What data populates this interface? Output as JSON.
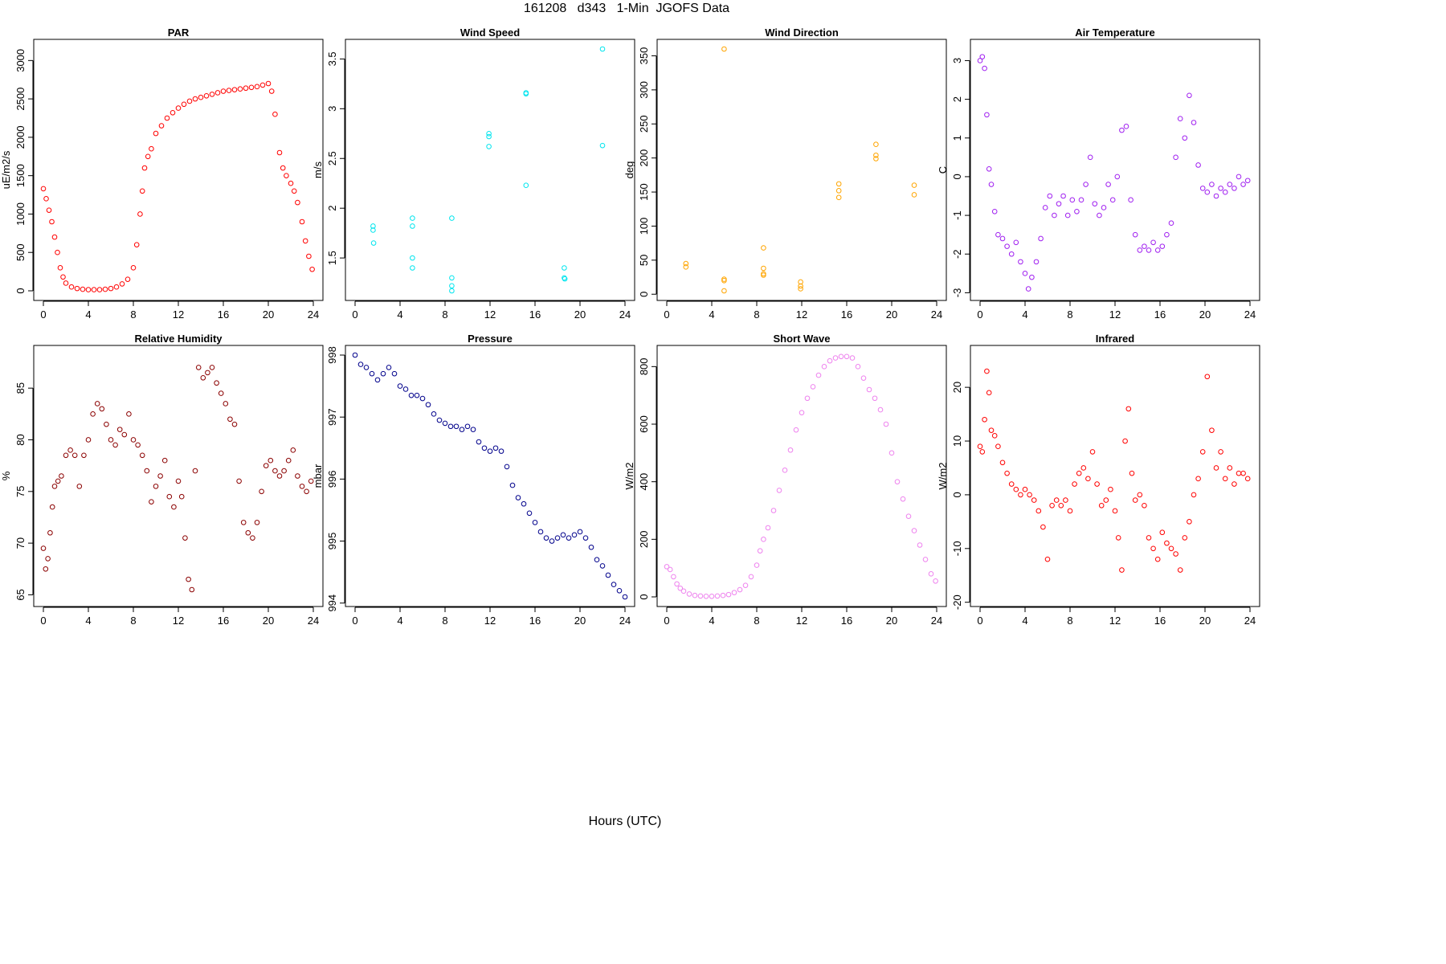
{
  "figure": {
    "title": "161208   d343   1-Min  JGOFS Data",
    "xlabel": "Hours (UTC)"
  },
  "chart_data": [
    {
      "type": "scatter",
      "title": "PAR",
      "ylabel": "uE/m2/s",
      "color": "#ff0000",
      "xlim": [
        0,
        24
      ],
      "ylim": [
        0,
        3150
      ],
      "xticks": [
        0,
        4,
        8,
        12,
        16,
        20,
        24
      ],
      "yticks": [
        0,
        500,
        1000,
        1500,
        2000,
        2500,
        3000
      ],
      "series": [
        {
          "x": [
            0,
            0.25,
            0.5,
            0.75,
            1,
            1.25,
            1.5,
            1.75,
            2,
            2.5,
            3,
            3.5,
            4,
            4.5,
            5,
            5.5,
            6,
            6.5,
            7,
            7.5,
            8,
            8.3,
            8.6,
            8.8,
            9,
            9.3,
            9.6,
            10,
            10.5,
            11,
            11.5,
            12,
            12.5,
            13,
            13.5,
            14,
            14.5,
            15,
            15.5,
            16,
            16.5,
            17,
            17.5,
            18,
            18.5,
            19,
            19.5,
            20,
            20.3,
            20.6,
            21,
            21.3,
            21.6,
            22,
            22.3,
            22.6,
            23,
            23.3,
            23.6,
            23.9
          ],
          "y": [
            1330,
            1200,
            1050,
            900,
            700,
            500,
            300,
            180,
            100,
            50,
            30,
            20,
            15,
            15,
            15,
            20,
            30,
            50,
            90,
            150,
            300,
            600,
            1000,
            1300,
            1600,
            1750,
            1850,
            2050,
            2150,
            2250,
            2320,
            2380,
            2430,
            2470,
            2500,
            2520,
            2540,
            2560,
            2580,
            2600,
            2610,
            2620,
            2630,
            2640,
            2650,
            2660,
            2680,
            2700,
            2600,
            2300,
            1800,
            1600,
            1500,
            1400,
            1300,
            1150,
            900,
            650,
            450,
            280
          ]
        }
      ]
    },
    {
      "type": "scatter",
      "title": "Wind Speed",
      "ylabel": "m/s",
      "color": "#00e5ee",
      "xlim": [
        0,
        24
      ],
      "ylim": [
        1.17,
        3.6
      ],
      "xticks": [
        0,
        4,
        8,
        12,
        16,
        20,
        24
      ],
      "yticks": [
        1.5,
        2.0,
        2.5,
        3.0,
        3.5
      ],
      "series": [
        {
          "x": [
            1.6,
            1.6,
            1.65,
            5.1,
            5.1,
            5.1,
            5.1,
            8.6,
            8.6,
            8.6,
            8.6,
            11.9,
            11.9,
            11.9,
            15.2,
            15.2,
            15.2,
            18.6,
            18.6,
            18.65,
            22,
            22
          ],
          "y": [
            1.82,
            1.78,
            1.65,
            1.9,
            1.82,
            1.5,
            1.4,
            1.9,
            1.3,
            1.22,
            1.17,
            2.75,
            2.72,
            2.62,
            3.16,
            3.15,
            2.23,
            1.4,
            1.3,
            1.29,
            3.6,
            2.63
          ]
        }
      ]
    },
    {
      "type": "scatter",
      "title": "Wind Direction",
      "ylabel": "deg",
      "color": "#ffa500",
      "xlim": [
        0,
        24
      ],
      "ylim": [
        5,
        360
      ],
      "xticks": [
        0,
        4,
        8,
        12,
        16,
        20,
        24
      ],
      "yticks": [
        0,
        50,
        100,
        150,
        200,
        250,
        300,
        350
      ],
      "series": [
        {
          "x": [
            1.7,
            1.7,
            5.1,
            5.1,
            5.1,
            5.1,
            8.6,
            8.6,
            8.6,
            8.6,
            11.9,
            11.9,
            11.9,
            15.3,
            15.3,
            15.3,
            18.6,
            18.6,
            18.6,
            22,
            22
          ],
          "y": [
            45,
            40,
            360,
            22,
            20,
            5,
            68,
            38,
            30,
            28,
            18,
            12,
            8,
            162,
            152,
            142,
            220,
            204,
            199,
            160,
            146
          ]
        }
      ]
    },
    {
      "type": "scatter",
      "title": "Air Temperature",
      "ylabel": "C",
      "color": "#a020f0",
      "xlim": [
        0,
        24
      ],
      "ylim": [
        -2.95,
        3.3
      ],
      "xticks": [
        0,
        4,
        8,
        12,
        16,
        20,
        24
      ],
      "yticks": [
        -3,
        -2,
        -1,
        0,
        1,
        2,
        3
      ],
      "series": [
        {
          "x": [
            0,
            0.2,
            0.4,
            0.6,
            0.8,
            1,
            1.3,
            1.6,
            2,
            2.4,
            2.8,
            3.2,
            3.6,
            4,
            4.3,
            4.6,
            5,
            5.4,
            5.8,
            6.2,
            6.6,
            7,
            7.4,
            7.8,
            8.2,
            8.6,
            9,
            9.4,
            9.8,
            10.2,
            10.6,
            11,
            11.4,
            11.8,
            12.2,
            12.6,
            13,
            13.4,
            13.8,
            14.2,
            14.6,
            15,
            15.4,
            15.8,
            16.2,
            16.6,
            17,
            17.4,
            17.8,
            18.2,
            18.6,
            19,
            19.4,
            19.8,
            20.2,
            20.6,
            21,
            21.4,
            21.8,
            22.2,
            22.6,
            23,
            23.4,
            23.8
          ],
          "y": [
            3.0,
            3.1,
            2.8,
            1.6,
            0.2,
            -0.2,
            -0.9,
            -1.5,
            -1.6,
            -1.8,
            -2.0,
            -1.7,
            -2.2,
            -2.5,
            -2.9,
            -2.6,
            -2.2,
            -1.6,
            -0.8,
            -0.5,
            -1.0,
            -0.7,
            -0.5,
            -1.0,
            -0.6,
            -0.9,
            -0.6,
            -0.2,
            0.5,
            -0.7,
            -1.0,
            -0.8,
            -0.2,
            -0.6,
            0.0,
            1.2,
            1.3,
            -0.6,
            -1.5,
            -1.9,
            -1.8,
            -1.9,
            -1.7,
            -1.9,
            -1.8,
            -1.5,
            -1.2,
            0.5,
            1.5,
            1.0,
            2.1,
            1.4,
            0.3,
            -0.3,
            -0.4,
            -0.2,
            -0.5,
            -0.3,
            -0.4,
            -0.2,
            -0.3,
            0.0,
            -0.2,
            -0.1
          ]
        }
      ]
    },
    {
      "type": "scatter",
      "title": "Relative Humidity",
      "ylabel": "%",
      "color": "#8b0000",
      "xlim": [
        0,
        24
      ],
      "ylim": [
        64.8,
        88.2
      ],
      "xticks": [
        0,
        4,
        8,
        12,
        16,
        20,
        24
      ],
      "yticks": [
        65,
        70,
        75,
        80,
        85
      ],
      "series": [
        {
          "x": [
            0,
            0.2,
            0.4,
            0.6,
            0.8,
            1,
            1.3,
            1.6,
            2,
            2.4,
            2.8,
            3.2,
            3.6,
            4,
            4.4,
            4.8,
            5.2,
            5.6,
            6,
            6.4,
            6.8,
            7.2,
            7.6,
            8,
            8.4,
            8.8,
            9.2,
            9.6,
            10,
            10.4,
            10.8,
            11.2,
            11.6,
            12,
            12.3,
            12.6,
            12.9,
            13.2,
            13.5,
            13.8,
            14.2,
            14.6,
            15,
            15.4,
            15.8,
            16.2,
            16.6,
            17,
            17.4,
            17.8,
            18.2,
            18.6,
            19,
            19.4,
            19.8,
            20.2,
            20.6,
            21,
            21.4,
            21.8,
            22.2,
            22.6,
            23,
            23.4,
            23.8
          ],
          "y": [
            69.5,
            67.5,
            68.5,
            71,
            73.5,
            75.5,
            76,
            76.5,
            78.5,
            79,
            78.5,
            75.5,
            78.5,
            80,
            82.5,
            83.5,
            83,
            81.5,
            80,
            79.5,
            81,
            80.5,
            82.5,
            80,
            79.5,
            78.5,
            77,
            74,
            75.5,
            76.5,
            78,
            74.5,
            73.5,
            76,
            74.5,
            70.5,
            66.5,
            65.5,
            77,
            87,
            86,
            86.5,
            87,
            85.5,
            84.5,
            83.5,
            82,
            81.5,
            76,
            72,
            71,
            70.5,
            72,
            75,
            77.5,
            78,
            77,
            76.5,
            77,
            78,
            79,
            76.5,
            75.5,
            75,
            76
          ]
        }
      ]
    },
    {
      "type": "scatter",
      "title": "Pressure",
      "ylabel": "mbar",
      "color": "#00008b",
      "xlim": [
        0,
        24
      ],
      "ylim": [
        994.1,
        998
      ],
      "xticks": [
        0,
        4,
        8,
        12,
        16,
        20,
        24
      ],
      "yticks": [
        994,
        995,
        996,
        997,
        998
      ],
      "series": [
        {
          "x": [
            0,
            0.5,
            1,
            1.5,
            2,
            2.5,
            3,
            3.5,
            4,
            4.5,
            5,
            5.5,
            6,
            6.5,
            7,
            7.5,
            8,
            8.5,
            9,
            9.5,
            10,
            10.5,
            11,
            11.5,
            12,
            12.5,
            13,
            13.5,
            14,
            14.5,
            15,
            15.5,
            16,
            16.5,
            17,
            17.5,
            18,
            18.5,
            19,
            19.5,
            20,
            20.5,
            21,
            21.5,
            22,
            22.5,
            23,
            23.5,
            24
          ],
          "y": [
            998.0,
            997.85,
            997.8,
            997.7,
            997.6,
            997.7,
            997.8,
            997.7,
            997.5,
            997.45,
            997.35,
            997.35,
            997.3,
            997.2,
            997.05,
            996.95,
            996.9,
            996.85,
            996.85,
            996.8,
            996.85,
            996.8,
            996.6,
            996.5,
            996.45,
            996.5,
            996.45,
            996.2,
            995.9,
            995.7,
            995.6,
            995.45,
            995.3,
            995.15,
            995.05,
            995.0,
            995.05,
            995.1,
            995.05,
            995.1,
            995.15,
            995.05,
            994.9,
            994.7,
            994.6,
            994.45,
            994.3,
            994.2,
            994.1
          ]
        }
      ]
    },
    {
      "type": "scatter",
      "title": "Short Wave",
      "ylabel": "W/m2",
      "color": "#ee82ee",
      "xlim": [
        0,
        24
      ],
      "ylim": [
        0,
        840
      ],
      "xticks": [
        0,
        4,
        8,
        12,
        16,
        20,
        24
      ],
      "yticks": [
        0,
        200,
        400,
        600,
        800
      ],
      "series": [
        {
          "x": [
            0,
            0.3,
            0.6,
            0.9,
            1.2,
            1.5,
            2,
            2.5,
            3,
            3.5,
            4,
            4.5,
            5,
            5.5,
            6,
            6.5,
            7,
            7.5,
            8,
            8.3,
            8.6,
            9,
            9.5,
            10,
            10.5,
            11,
            11.5,
            12,
            12.5,
            13,
            13.5,
            14,
            14.5,
            15,
            15.5,
            16,
            16.5,
            17,
            17.5,
            18,
            18.5,
            19,
            19.5,
            20,
            20.5,
            21,
            21.5,
            22,
            22.5,
            23,
            23.5,
            23.9
          ],
          "y": [
            105,
            95,
            70,
            45,
            30,
            20,
            10,
            5,
            3,
            2,
            2,
            3,
            5,
            8,
            15,
            25,
            40,
            70,
            110,
            160,
            200,
            240,
            300,
            370,
            440,
            510,
            580,
            640,
            690,
            730,
            770,
            800,
            820,
            830,
            835,
            835,
            830,
            800,
            760,
            720,
            690,
            650,
            600,
            500,
            400,
            340,
            280,
            230,
            180,
            130,
            80,
            55
          ]
        }
      ]
    },
    {
      "type": "scatter",
      "title": "Infrared",
      "ylabel": "W/m2",
      "color": "#ff0000",
      "xlim": [
        0,
        24
      ],
      "ylim": [
        -19,
        26
      ],
      "xticks": [
        0,
        4,
        8,
        12,
        16,
        20,
        24
      ],
      "yticks": [
        -20,
        -10,
        0,
        10,
        20
      ],
      "series": [
        {
          "x": [
            0,
            0.2,
            0.4,
            0.6,
            0.8,
            1,
            1.3,
            1.6,
            2,
            2.4,
            2.8,
            3.2,
            3.6,
            4,
            4.4,
            4.8,
            5.2,
            5.6,
            6,
            6.4,
            6.8,
            7.2,
            7.6,
            8,
            8.4,
            8.8,
            9.2,
            9.6,
            10,
            10.4,
            10.8,
            11.2,
            11.6,
            12,
            12.3,
            12.6,
            12.9,
            13.2,
            13.5,
            13.8,
            14.2,
            14.6,
            15,
            15.4,
            15.8,
            16.2,
            16.6,
            17,
            17.4,
            17.8,
            18.2,
            18.6,
            19,
            19.4,
            19.8,
            20.2,
            20.6,
            21,
            21.4,
            21.8,
            22.2,
            22.6,
            23,
            23.4,
            23.8
          ],
          "y": [
            9,
            8,
            14,
            23,
            19,
            12,
            11,
            9,
            6,
            4,
            2,
            1,
            0,
            1,
            0,
            -1,
            -3,
            -6,
            -12,
            -2,
            -1,
            -2,
            -1,
            -3,
            2,
            4,
            5,
            3,
            8,
            2,
            -2,
            -1,
            1,
            -3,
            -8,
            -14,
            10,
            16,
            4,
            -1,
            0,
            -2,
            -8,
            -10,
            -12,
            -7,
            -9,
            -10,
            -11,
            -14,
            -8,
            -5,
            0,
            3,
            8,
            22,
            12,
            5,
            8,
            3,
            5,
            2,
            4,
            4,
            3
          ]
        }
      ]
    }
  ]
}
